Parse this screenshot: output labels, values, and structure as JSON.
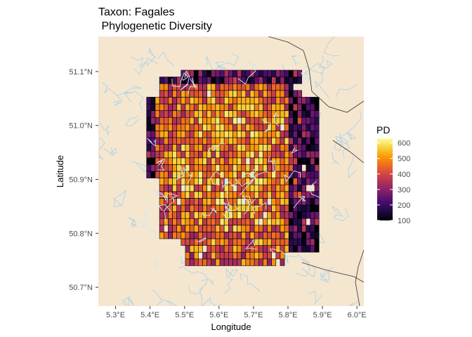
{
  "title_line1": "Taxon: Fagales",
  "title_line2": " Phylogenetic Diversity",
  "x_axis_title": "Longitude",
  "y_axis_title": "Latitude",
  "legend": {
    "title": "PD",
    "ticks": [
      "600",
      "500",
      "400",
      "300",
      "200",
      "100"
    ],
    "colormap": [
      "#000004",
      "#1b0c41",
      "#4a0c6b",
      "#781c6d",
      "#a52c60",
      "#cf4446",
      "#ed6925",
      "#fb9b06",
      "#f7d13d",
      "#fcffa4"
    ]
  },
  "colors": {
    "land": "#f5e6d0",
    "water": "#a6d2e6",
    "border": "#333333",
    "grid_outline": "#000000"
  },
  "chart_data": {
    "type": "heatmap",
    "xlabel": "Longitude",
    "ylabel": "Latitude",
    "xlim": [
      5.25,
      6.02
    ],
    "ylim": [
      50.665,
      51.165
    ],
    "x_ticks": [
      "5.3°E",
      "5.4°E",
      "5.5°E",
      "5.6°E",
      "5.7°E",
      "5.8°E",
      "5.9°E",
      "6.0°E"
    ],
    "y_ticks": [
      "51.1°N",
      "51.0°N",
      "50.9°N",
      "50.8°N",
      "50.7°N"
    ],
    "value_range": [
      100,
      630
    ],
    "cell_size_deg": 0.0125,
    "grid_extent": {
      "lon": [
        5.39,
        5.885
      ],
      "lat": [
        50.74,
        51.095
      ]
    }
  }
}
